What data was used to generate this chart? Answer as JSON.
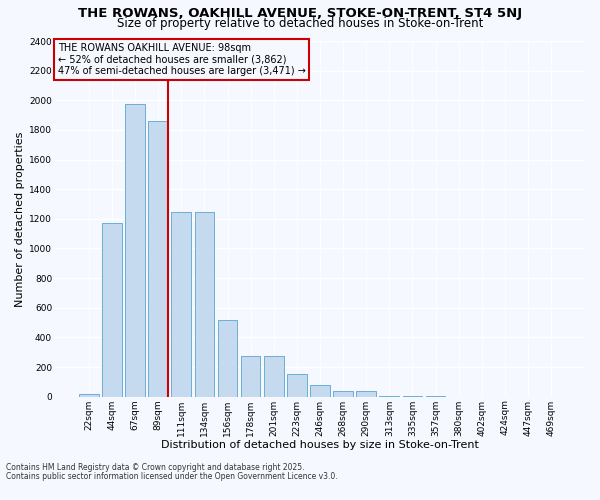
{
  "title": "THE ROWANS, OAKHILL AVENUE, STOKE-ON-TRENT, ST4 5NJ",
  "subtitle": "Size of property relative to detached houses in Stoke-on-Trent",
  "xlabel": "Distribution of detached houses by size in Stoke-on-Trent",
  "ylabel": "Number of detached properties",
  "categories": [
    "22sqm",
    "44sqm",
    "67sqm",
    "89sqm",
    "111sqm",
    "134sqm",
    "156sqm",
    "178sqm",
    "201sqm",
    "223sqm",
    "246sqm",
    "268sqm",
    "290sqm",
    "313sqm",
    "335sqm",
    "357sqm",
    "380sqm",
    "402sqm",
    "424sqm",
    "447sqm",
    "469sqm"
  ],
  "values": [
    20,
    1175,
    1975,
    1860,
    1245,
    1245,
    520,
    275,
    275,
    150,
    80,
    35,
    35,
    5,
    3,
    2,
    1,
    1,
    0,
    0,
    0
  ],
  "bar_color": "#c5d9ef",
  "bar_edge_color": "#6baed6",
  "red_line_index": 3,
  "annotation_title": "THE ROWANS OAKHILL AVENUE: 98sqm",
  "annotation_line1": "← 52% of detached houses are smaller (3,862)",
  "annotation_line2": "47% of semi-detached houses are larger (3,471) →",
  "annotation_box_color": "#cc0000",
  "ylim_max": 2400,
  "yticks": [
    0,
    200,
    400,
    600,
    800,
    1000,
    1200,
    1400,
    1600,
    1800,
    2000,
    2200,
    2400
  ],
  "footnote1": "Contains HM Land Registry data © Crown copyright and database right 2025.",
  "footnote2": "Contains public sector information licensed under the Open Government Licence v3.0.",
  "bg_color": "#f5f8ff",
  "plot_bg_color": "#f5f8ff",
  "grid_color": "#ffffff",
  "title_fontsize": 9.5,
  "subtitle_fontsize": 8.5,
  "axis_label_fontsize": 8,
  "tick_fontsize": 6.5,
  "annot_fontsize": 7,
  "footnote_fontsize": 5.5
}
